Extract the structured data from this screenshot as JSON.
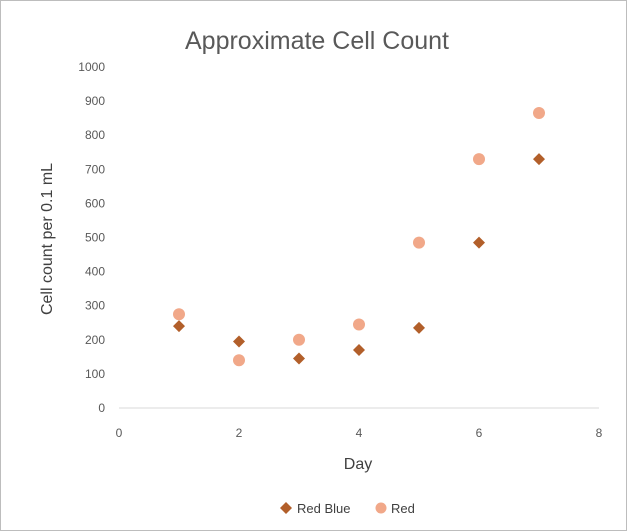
{
  "chart_data": {
    "type": "scatter",
    "title": "Approximate Cell Count",
    "xlabel": "Day",
    "ylabel": "Cell count per 0.1 mL",
    "xlim": [
      0,
      8
    ],
    "ylim": [
      0,
      1000
    ],
    "x_ticks": [
      0,
      2,
      4,
      6,
      8
    ],
    "y_ticks": [
      0,
      100,
      200,
      300,
      400,
      500,
      600,
      700,
      800,
      900,
      1000
    ],
    "grid": false,
    "legend_position": "bottom",
    "series": [
      {
        "name": "Red Blue",
        "marker": "diamond",
        "color": "#b25f2a",
        "x": [
          1,
          2,
          3,
          4,
          5,
          6,
          7
        ],
        "y": [
          240,
          195,
          145,
          170,
          235,
          485,
          730
        ]
      },
      {
        "name": "Red",
        "marker": "circle",
        "color": "#f1a889",
        "x": [
          1,
          2,
          3,
          4,
          5,
          6,
          7
        ],
        "y": [
          275,
          140,
          200,
          245,
          485,
          730,
          865
        ]
      }
    ]
  }
}
